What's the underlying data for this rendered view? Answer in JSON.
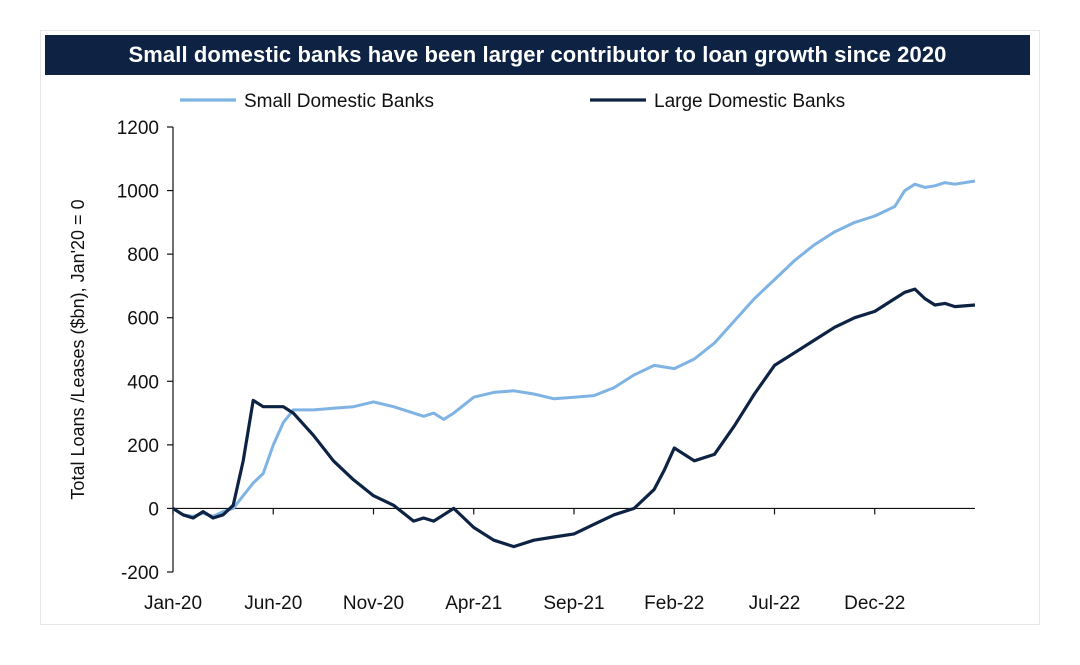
{
  "chart_data": {
    "type": "line",
    "title": "Small domestic banks have been larger contributor to loan growth since 2020",
    "xlabel": "",
    "ylabel": "Total Loans /Leases ($bn), Jan'20 = 0",
    "ylim": [
      -200,
      1200
    ],
    "y_ticks": [
      -200,
      0,
      200,
      400,
      600,
      800,
      1000,
      1200
    ],
    "x_ticks": [
      "Jan-20",
      "Jun-20",
      "Nov-20",
      "Apr-21",
      "Sep-21",
      "Feb-22",
      "Jul-22",
      "Dec-22"
    ],
    "x_unit": "months since Jan-20",
    "x_range": [
      0,
      40
    ],
    "legend_position": "top",
    "grid": false,
    "series": [
      {
        "name": "Small Domestic Banks",
        "color": "#7fb3e3",
        "x": [
          0,
          0.5,
          1,
          1.5,
          2,
          2.5,
          3,
          3.5,
          4,
          4.5,
          5,
          5.5,
          6,
          7,
          8,
          9,
          10,
          11,
          12,
          12.5,
          13,
          13.5,
          14,
          15,
          16,
          17,
          18,
          19,
          20,
          21,
          22,
          23,
          24,
          25,
          26,
          27,
          28,
          29,
          30,
          31,
          32,
          33,
          34,
          35,
          36,
          36.5,
          37,
          37.5,
          38,
          38.5,
          39,
          40
        ],
        "values": [
          0,
          -20,
          -25,
          -15,
          -25,
          -10,
          0,
          40,
          80,
          110,
          200,
          270,
          310,
          310,
          315,
          320,
          335,
          320,
          300,
          290,
          300,
          280,
          300,
          350,
          365,
          370,
          360,
          345,
          350,
          355,
          380,
          420,
          450,
          440,
          470,
          520,
          590,
          660,
          720,
          780,
          830,
          870,
          900,
          920,
          950,
          1000,
          1020,
          1010,
          1015,
          1025,
          1020,
          1030
        ]
      },
      {
        "name": "Large Domestic Banks",
        "color": "#0e2243",
        "x": [
          0,
          0.5,
          1,
          1.5,
          2,
          2.5,
          3,
          3.5,
          4,
          4.5,
          5,
          5.5,
          6,
          7,
          8,
          9,
          10,
          11,
          12,
          12.5,
          13,
          13.5,
          14,
          15,
          16,
          17,
          18,
          19,
          20,
          21,
          22,
          23,
          24,
          24.5,
          25,
          26,
          27,
          28,
          29,
          30,
          31,
          32,
          33,
          34,
          35,
          36,
          36.5,
          37,
          37.5,
          38,
          38.5,
          39,
          40
        ],
        "values": [
          0,
          -20,
          -30,
          -10,
          -30,
          -20,
          10,
          150,
          340,
          320,
          320,
          320,
          300,
          230,
          150,
          90,
          40,
          10,
          -40,
          -30,
          -40,
          -20,
          0,
          -60,
          -100,
          -120,
          -100,
          -90,
          -80,
          -50,
          -20,
          0,
          60,
          120,
          190,
          150,
          170,
          260,
          360,
          450,
          490,
          530,
          570,
          600,
          620,
          660,
          680,
          690,
          660,
          640,
          645,
          635,
          640
        ]
      }
    ]
  }
}
